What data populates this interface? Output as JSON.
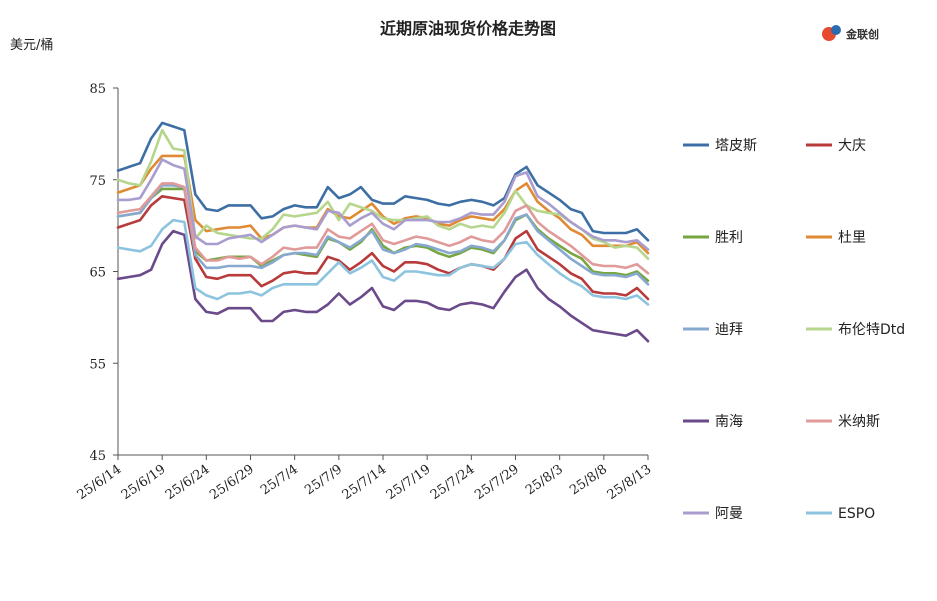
{
  "chart_data": {
    "type": "line",
    "title": "近期原油现货价格走势图",
    "unit_label": "美元/桶",
    "logo_text": "金联创",
    "ylim": [
      45,
      85
    ],
    "yticks": [
      45,
      55,
      65,
      75,
      85
    ],
    "xtick_labels": [
      "25/6/14",
      "25/6/19",
      "25/6/24",
      "25/6/29",
      "25/7/4",
      "25/7/9",
      "25/7/14",
      "25/7/19",
      "25/7/24",
      "25/7/29",
      "25/8/3",
      "25/8/8",
      "25/8/13"
    ],
    "grid": false,
    "legend_position": "right",
    "series": [
      {
        "name": "塔皮斯",
        "color": "#3d6fa5",
        "values": [
          76.0,
          76.4,
          76.8,
          79.5,
          81.2,
          80.8,
          80.4,
          73.4,
          71.8,
          71.6,
          72.2,
          72.2,
          72.2,
          70.8,
          71.0,
          71.8,
          72.2,
          72.0,
          72.0,
          74.2,
          73.0,
          73.4,
          74.2,
          72.8,
          72.4,
          72.4,
          73.2,
          73.0,
          72.8,
          72.4,
          72.2,
          72.6,
          72.8,
          72.6,
          72.2,
          73.0,
          75.6,
          76.4,
          74.4,
          73.6,
          72.8,
          71.8,
          71.4,
          69.4,
          69.2,
          69.2,
          69.2,
          69.6,
          68.4
        ]
      },
      {
        "name": "大庆",
        "color": "#b83a3a",
        "values": [
          69.8,
          70.2,
          70.6,
          72.2,
          73.2,
          73.0,
          72.8,
          66.4,
          64.4,
          64.2,
          64.6,
          64.6,
          64.6,
          63.4,
          64.0,
          64.8,
          65.0,
          64.8,
          64.8,
          66.6,
          66.2,
          65.2,
          66.0,
          67.0,
          65.6,
          65.0,
          66.0,
          66.0,
          65.8,
          65.2,
          64.8,
          65.4,
          65.8,
          65.6,
          65.2,
          66.4,
          68.6,
          69.4,
          67.4,
          66.6,
          65.8,
          64.8,
          64.2,
          62.8,
          62.6,
          62.6,
          62.4,
          63.2,
          62.0
        ]
      },
      {
        "name": "胜利",
        "color": "#77a640",
        "values": [
          71.0,
          71.2,
          71.4,
          73.0,
          74.0,
          74.0,
          74.0,
          67.2,
          66.2,
          66.4,
          66.6,
          66.6,
          66.6,
          65.6,
          66.2,
          66.8,
          67.0,
          66.8,
          66.6,
          68.6,
          68.2,
          67.4,
          68.2,
          69.6,
          67.8,
          67.0,
          67.6,
          67.8,
          67.6,
          67.0,
          66.6,
          67.0,
          67.6,
          67.4,
          67.0,
          68.4,
          70.6,
          71.2,
          69.6,
          68.6,
          67.8,
          67.0,
          66.4,
          65.0,
          64.8,
          64.8,
          64.6,
          65.0,
          64.0
        ]
      },
      {
        "name": "杜里",
        "color": "#e08a34",
        "values": [
          73.6,
          74.0,
          74.4,
          76.2,
          77.6,
          77.6,
          77.6,
          70.6,
          69.4,
          69.6,
          69.8,
          69.8,
          70.0,
          68.6,
          69.0,
          69.8,
          70.0,
          69.8,
          69.8,
          71.8,
          71.0,
          70.8,
          71.6,
          72.4,
          71.0,
          70.2,
          70.8,
          71.0,
          70.8,
          70.2,
          70.0,
          70.6,
          71.0,
          70.8,
          70.6,
          71.8,
          73.8,
          74.6,
          72.6,
          71.6,
          70.8,
          69.6,
          69.0,
          67.8,
          67.8,
          67.8,
          67.8,
          68.2,
          67.0
        ]
      },
      {
        "name": "迪拜",
        "color": "#87a9d0",
        "values": [
          71.0,
          71.2,
          71.4,
          73.0,
          74.4,
          74.4,
          74.2,
          66.8,
          65.4,
          65.4,
          65.6,
          65.6,
          65.6,
          65.4,
          66.0,
          66.8,
          67.0,
          67.0,
          66.8,
          68.8,
          68.2,
          67.6,
          68.4,
          69.4,
          67.4,
          67.0,
          67.4,
          68.0,
          67.8,
          67.4,
          67.0,
          67.2,
          67.8,
          67.6,
          67.2,
          68.4,
          70.8,
          71.2,
          69.4,
          68.4,
          67.4,
          66.4,
          65.6,
          64.8,
          64.6,
          64.6,
          64.4,
          64.8,
          63.6
        ]
      },
      {
        "name": "布伦特Dtd",
        "color": "#b5d68c",
        "values": [
          75.0,
          74.6,
          74.4,
          77.0,
          80.4,
          78.4,
          78.2,
          68.6,
          70.0,
          69.2,
          69.0,
          68.8,
          68.6,
          68.6,
          69.6,
          71.2,
          71.0,
          71.2,
          71.4,
          72.6,
          70.6,
          72.4,
          72.0,
          71.6,
          70.8,
          70.6,
          70.6,
          70.8,
          71.0,
          70.0,
          69.6,
          70.2,
          69.8,
          70.0,
          69.8,
          71.4,
          73.8,
          72.2,
          71.6,
          71.4,
          71.2,
          70.4,
          69.6,
          68.6,
          68.2,
          67.6,
          67.8,
          67.6,
          66.4
        ]
      },
      {
        "name": "南海",
        "color": "#6a4a8a",
        "values": [
          64.2,
          64.4,
          64.6,
          65.2,
          68.0,
          69.4,
          69.0,
          62.0,
          60.6,
          60.4,
          61.0,
          61.0,
          61.0,
          59.6,
          59.6,
          60.6,
          60.8,
          60.6,
          60.6,
          61.4,
          62.6,
          61.4,
          62.2,
          63.2,
          61.2,
          60.8,
          61.8,
          61.8,
          61.6,
          61.0,
          60.8,
          61.4,
          61.6,
          61.4,
          61.0,
          62.8,
          64.4,
          65.2,
          63.2,
          62.0,
          61.2,
          60.2,
          59.4,
          58.6,
          58.4,
          58.2,
          58.0,
          58.6,
          57.4
        ]
      },
      {
        "name": "米纳斯",
        "color": "#e09a9a",
        "values": [
          71.4,
          71.6,
          71.8,
          73.2,
          74.6,
          74.6,
          74.2,
          67.6,
          66.2,
          66.2,
          66.6,
          66.4,
          66.6,
          65.8,
          66.6,
          67.6,
          67.4,
          67.6,
          67.6,
          69.6,
          68.8,
          68.6,
          69.4,
          70.2,
          68.4,
          68.0,
          68.4,
          68.8,
          68.6,
          68.2,
          67.8,
          68.2,
          68.8,
          68.4,
          68.2,
          69.4,
          71.6,
          72.2,
          70.4,
          69.4,
          68.6,
          67.8,
          66.8,
          65.8,
          65.6,
          65.6,
          65.4,
          65.8,
          64.8
        ]
      },
      {
        "name": "阿曼",
        "color": "#a99ccf",
        "values": [
          72.8,
          72.8,
          73.0,
          75.0,
          77.2,
          76.6,
          76.2,
          68.8,
          68.0,
          68.0,
          68.6,
          68.8,
          69.0,
          68.2,
          69.0,
          69.8,
          70.0,
          69.8,
          69.6,
          71.6,
          71.4,
          70.0,
          70.8,
          71.4,
          70.2,
          69.6,
          70.6,
          70.6,
          70.6,
          70.4,
          70.4,
          70.8,
          71.4,
          71.2,
          71.2,
          72.6,
          75.4,
          75.8,
          73.2,
          72.4,
          71.4,
          70.4,
          69.6,
          68.8,
          68.4,
          68.4,
          68.2,
          68.4,
          67.4
        ]
      },
      {
        "name": "ESPO",
        "color": "#8cc4df",
        "values": [
          67.6,
          67.4,
          67.2,
          67.8,
          69.6,
          70.6,
          70.4,
          63.2,
          62.4,
          62.0,
          62.6,
          62.6,
          62.8,
          62.4,
          63.2,
          63.6,
          63.6,
          63.6,
          63.6,
          64.8,
          66.0,
          64.8,
          65.4,
          66.2,
          64.4,
          64.0,
          65.0,
          65.0,
          64.8,
          64.6,
          64.6,
          65.4,
          65.8,
          65.6,
          65.4,
          66.4,
          68.0,
          68.2,
          66.8,
          65.8,
          64.8,
          64.0,
          63.4,
          62.4,
          62.2,
          62.2,
          62.0,
          62.4,
          61.4
        ]
      }
    ]
  }
}
